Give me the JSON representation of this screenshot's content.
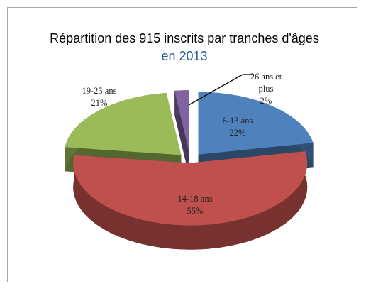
{
  "chart_data": {
    "type": "pie",
    "title": "Répartition des 915 inscrits par tranches d'âges",
    "title_suffix": "en 2013",
    "categories": [
      "6-13 ans",
      "14-18 ans",
      "19-25 ans",
      "26 ans et plus"
    ],
    "values": [
      22,
      55,
      21,
      2
    ],
    "value_labels": [
      "22%",
      "55%",
      "21%",
      "2%"
    ],
    "colors": [
      "#4f81bd",
      "#c0504d",
      "#9bbb59",
      "#8064a2"
    ]
  }
}
